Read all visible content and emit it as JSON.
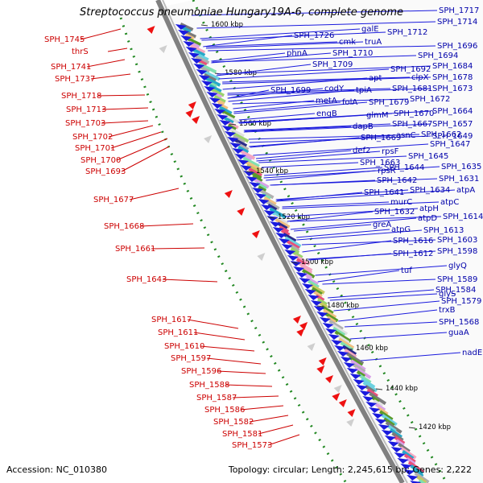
{
  "title": "Streptococcus pneumoniae Hungary19A-6, complete genome",
  "footer": {
    "accession": "Accession: NC_010380",
    "summary": "Topology: circular; Length: 2,245,615 bp; Genes: 2,222"
  },
  "colors": {
    "left_labels": "#cc0000",
    "right_labels": "#0000aa",
    "forward_arrows": "#ee1111",
    "reverse_arrows": "#1a1add",
    "backbone": "#808080",
    "tick_line": "#228822"
  },
  "scale_ticks": [
    {
      "label": "1600 kbp"
    },
    {
      "label": "1580 kbp"
    },
    {
      "label": "1560 kbp"
    },
    {
      "label": "1540 kbp"
    },
    {
      "label": "1520 kbp"
    },
    {
      "label": "1500 kbp"
    },
    {
      "label": "1480 kbp"
    },
    {
      "label": "1460 kbp"
    },
    {
      "label": "1440 kbp"
    },
    {
      "label": "1420 kbp"
    }
  ],
  "left_labels": [
    {
      "text": "SPH_1745"
    },
    {
      "text": "thrS"
    },
    {
      "text": "SPH_1741"
    },
    {
      "text": "SPH_1737"
    },
    {
      "text": "SPH_1718"
    },
    {
      "text": "SPH_1713"
    },
    {
      "text": "SPH_1703"
    },
    {
      "text": "SPH_1702"
    },
    {
      "text": "SPH_1701"
    },
    {
      "text": "SPH_1700"
    },
    {
      "text": "SPH_1693"
    },
    {
      "text": "SPH_1677"
    },
    {
      "text": "SPH_1668"
    },
    {
      "text": "SPH_1661"
    },
    {
      "text": "SPH_1643"
    },
    {
      "text": "SPH_1617"
    },
    {
      "text": "SPH_1611"
    },
    {
      "text": "SPH_1610"
    },
    {
      "text": "SPH_1597"
    },
    {
      "text": "SPH_1596"
    },
    {
      "text": "SPH_1588"
    },
    {
      "text": "SPH_1587"
    },
    {
      "text": "SPH_1586"
    },
    {
      "text": "SPH_1582"
    },
    {
      "text": "SPH_1581"
    },
    {
      "text": "SPH_1573"
    }
  ],
  "right_labels": [
    {
      "text": "SPH_1717"
    },
    {
      "text": "SPH_1714"
    },
    {
      "text": "SPH_1712"
    },
    {
      "text": "galE"
    },
    {
      "text": "SPH_1726"
    },
    {
      "text": "cmk"
    },
    {
      "text": "truA"
    },
    {
      "text": "phnA"
    },
    {
      "text": "SPH_1710"
    },
    {
      "text": "SPH_1709"
    },
    {
      "text": "SPH_1696"
    },
    {
      "text": "SPH_1694"
    },
    {
      "text": "SPH_1684"
    },
    {
      "text": "SPH_1692"
    },
    {
      "text": "apt"
    },
    {
      "text": "clpX"
    },
    {
      "text": "SPH_1678"
    },
    {
      "text": "SPH_1699"
    },
    {
      "text": "codY"
    },
    {
      "text": "tpiA"
    },
    {
      "text": "SPH_1681"
    },
    {
      "text": "SPH_1673"
    },
    {
      "text": "metA"
    },
    {
      "text": "folA"
    },
    {
      "text": "SPH_1679"
    },
    {
      "text": "SPH_1672"
    },
    {
      "text": "engB"
    },
    {
      "text": "glmM"
    },
    {
      "text": "SPH_1670"
    },
    {
      "text": "SPH_1664"
    },
    {
      "text": "dapB"
    },
    {
      "text": "SPH_1667"
    },
    {
      "text": "SPH_1657"
    },
    {
      "text": "SPH_1669"
    },
    {
      "text": "asnC"
    },
    {
      "text": "SPH_1662"
    },
    {
      "text": "SPH_1649"
    },
    {
      "text": "def2"
    },
    {
      "text": "rpsF"
    },
    {
      "text": "SPH_1647"
    },
    {
      "text": "SPH_1663"
    },
    {
      "text": "SPH_1645"
    },
    {
      "text": "SPH_1644"
    },
    {
      "text": "rpsR"
    },
    {
      "text": "SPH_1635"
    },
    {
      "text": "SPH_1642"
    },
    {
      "text": "SPH_1631"
    },
    {
      "text": "SPH_1641"
    },
    {
      "text": "SPH_1634"
    },
    {
      "text": "atpA"
    },
    {
      "text": "murC"
    },
    {
      "text": "atpC"
    },
    {
      "text": "atpH"
    },
    {
      "text": "SPH_1632"
    },
    {
      "text": "atpD"
    },
    {
      "text": "SPH_1614"
    },
    {
      "text": "greA"
    },
    {
      "text": "atpG"
    },
    {
      "text": "SPH_1613"
    },
    {
      "text": "SPH_1616"
    },
    {
      "text": "SPH_1603"
    },
    {
      "text": "SPH_1612"
    },
    {
      "text": "SPH_1598"
    },
    {
      "text": "glyQ"
    },
    {
      "text": "tuf"
    },
    {
      "text": "SPH_1589"
    },
    {
      "text": "glyS"
    },
    {
      "text": "SPH_1584"
    },
    {
      "text": "SPH_1579"
    },
    {
      "text": "trxB"
    },
    {
      "text": "SPH_1568"
    },
    {
      "text": "guaA"
    },
    {
      "text": "nadE"
    }
  ]
}
